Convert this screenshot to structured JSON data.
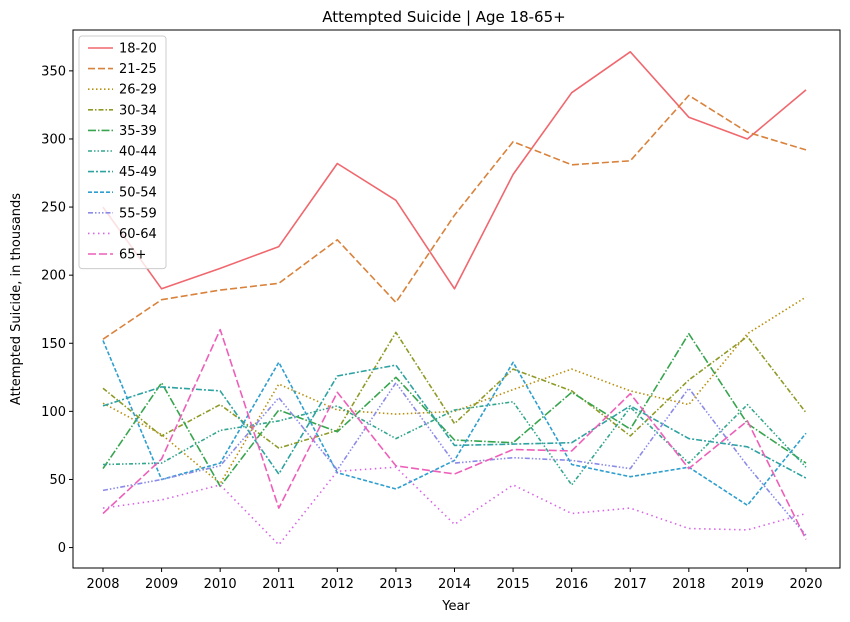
{
  "chart_data": {
    "type": "line",
    "title": "Attempted Suicide | Age 18-65+",
    "xlabel": "Year",
    "ylabel": "Attempted Suicide, in thousands",
    "x": [
      2008,
      2009,
      2010,
      2011,
      2012,
      2013,
      2014,
      2015,
      2016,
      2017,
      2018,
      2019,
      2020
    ],
    "ylim": [
      -15,
      380
    ],
    "yticks": [
      0,
      50,
      100,
      150,
      200,
      250,
      300,
      350
    ],
    "grid": false,
    "legend_position": "upper-left",
    "series": [
      {
        "name": "18-20",
        "color": "#f0676e",
        "dash": "solid",
        "values": [
          250,
          190,
          205,
          221,
          282,
          255,
          190,
          274,
          334,
          364,
          316,
          300,
          336
        ]
      },
      {
        "name": "21-25",
        "color": "#d9823b",
        "dash": "dashed",
        "values": [
          153,
          182,
          189,
          194,
          226,
          180,
          244,
          298,
          281,
          284,
          332,
          305,
          292
        ]
      },
      {
        "name": "26-29",
        "color": "#b8900f",
        "dash": "dotted",
        "values": [
          106,
          83,
          47,
          120,
          101,
          98,
          100,
          116,
          131,
          115,
          105,
          157,
          184
        ]
      },
      {
        "name": "30-34",
        "color": "#8f9a26",
        "dash": "dashdot",
        "values": [
          117,
          82,
          105,
          73,
          86,
          158,
          91,
          131,
          115,
          82,
          123,
          155,
          99
        ]
      },
      {
        "name": "35-39",
        "color": "#37a54e",
        "dash": "dashdot2",
        "values": [
          58,
          121,
          45,
          101,
          85,
          125,
          79,
          77,
          114,
          87,
          157,
          91,
          62
        ]
      },
      {
        "name": "40-44",
        "color": "#33a68e",
        "dash": "dashdotdot",
        "values": [
          61,
          62,
          86,
          93,
          104,
          80,
          101,
          107,
          46,
          103,
          62,
          105,
          59
        ]
      },
      {
        "name": "45-49",
        "color": "#2ea3a1",
        "dash": "dashdot3",
        "values": [
          104,
          118,
          115,
          54,
          126,
          134,
          75,
          76,
          77,
          104,
          80,
          74,
          51
        ]
      },
      {
        "name": "50-54",
        "color": "#2f9fcf",
        "dash": "dashed2",
        "values": [
          152,
          50,
          62,
          136,
          55,
          43,
          64,
          136,
          61,
          52,
          59,
          31,
          84
        ]
      },
      {
        "name": "55-59",
        "color": "#8b8ae8",
        "dash": "dashdotdot2",
        "values": [
          42,
          50,
          60,
          110,
          57,
          121,
          62,
          66,
          64,
          58,
          117,
          60,
          9
        ]
      },
      {
        "name": "60-64",
        "color": "#d864e8",
        "dash": "dotted2",
        "values": [
          29,
          35,
          46,
          2,
          56,
          59,
          17,
          46,
          25,
          29,
          14,
          13,
          25
        ]
      },
      {
        "name": "65+",
        "color": "#ee5fb9",
        "dash": "dashed3",
        "values": [
          25,
          65,
          160,
          29,
          114,
          60,
          54,
          72,
          71,
          113,
          58,
          93,
          6
        ]
      }
    ]
  }
}
